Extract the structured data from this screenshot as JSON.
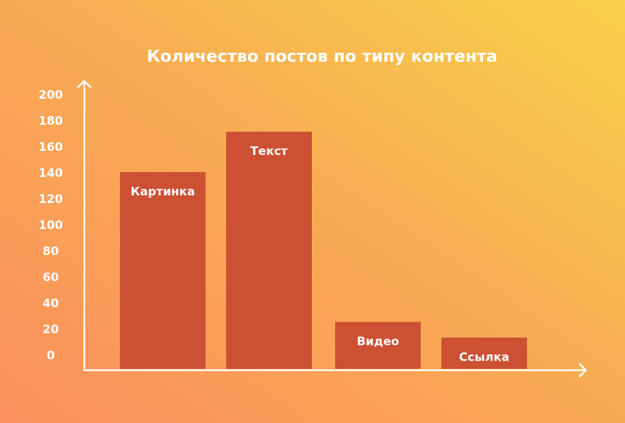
{
  "chart_data": {
    "type": "bar",
    "title": "Количество постов по типу контента",
    "categories": [
      "Картинка",
      "Текст",
      "Видео",
      "Ссылка"
    ],
    "values": [
      151,
      182,
      36,
      24
    ],
    "color": "#cc5033",
    "ylim": [
      0,
      200
    ],
    "yticks": [
      0,
      20,
      40,
      60,
      80,
      100,
      120,
      140,
      160,
      180,
      200
    ]
  }
}
